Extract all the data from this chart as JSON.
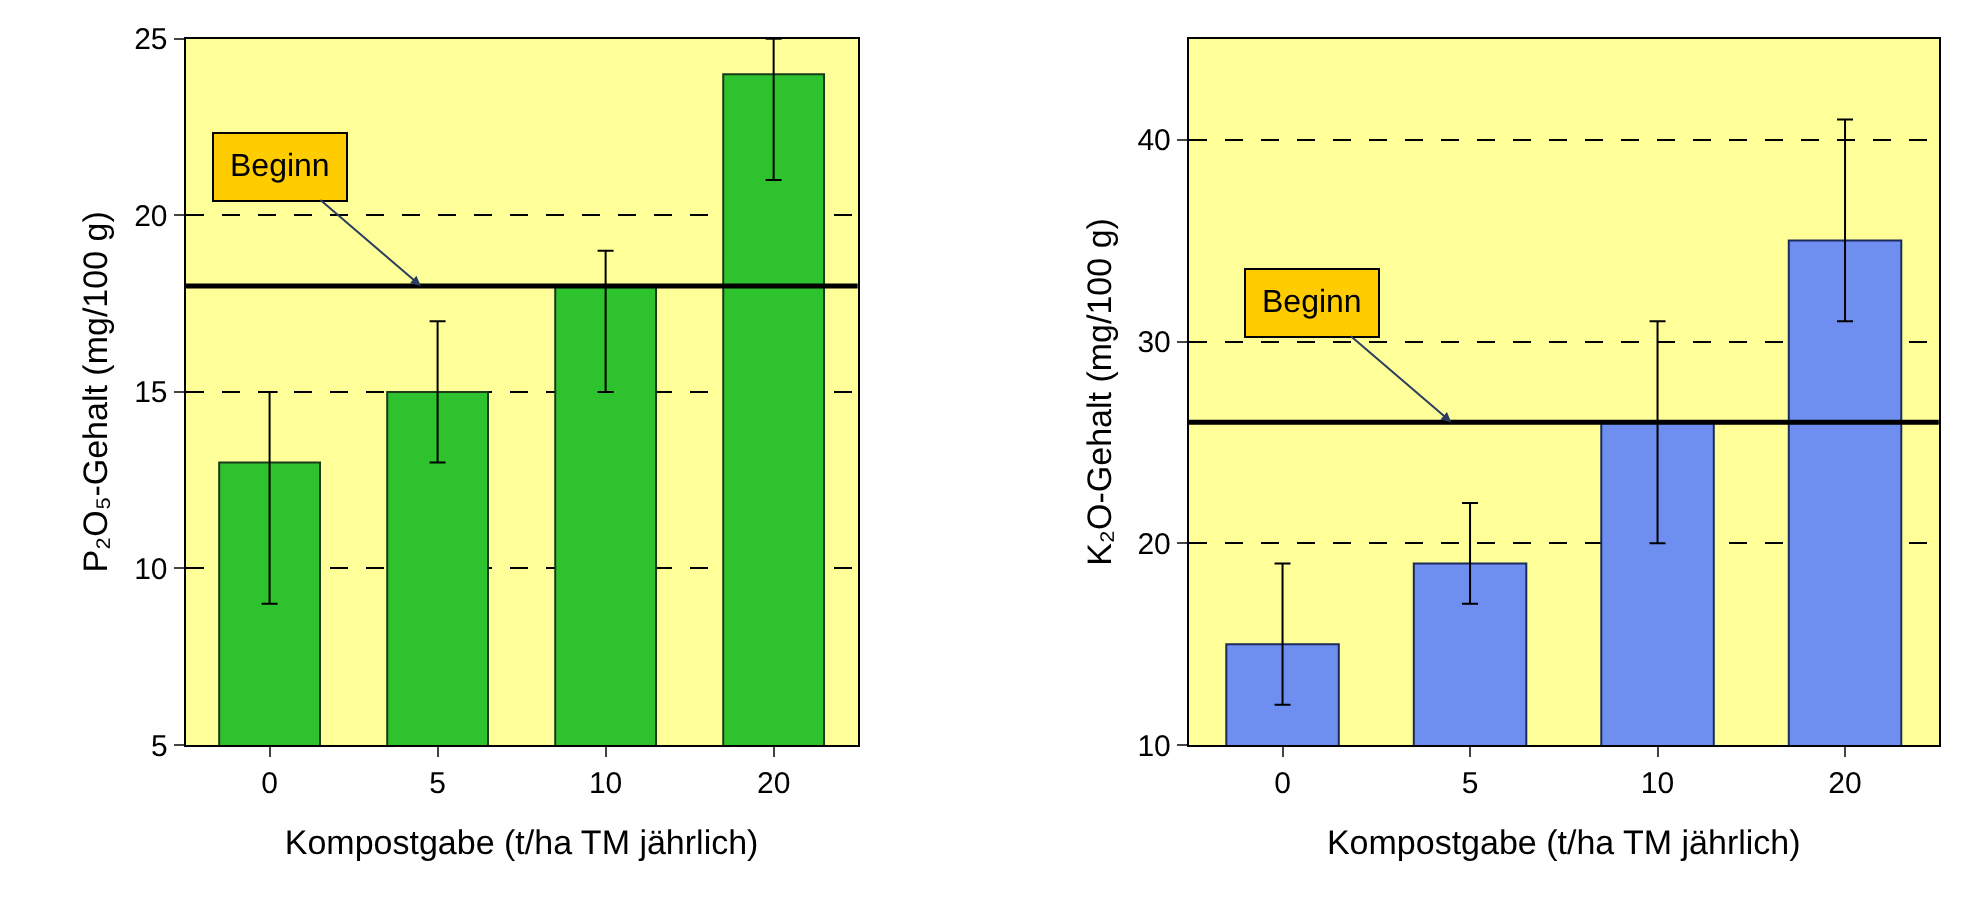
{
  "chart_data": [
    {
      "type": "bar",
      "categories": [
        "0",
        "5",
        "10",
        "20"
      ],
      "values": [
        13,
        15,
        18,
        24
      ],
      "color": "#2ec22e",
      "errors": [
        [
          9,
          15
        ],
        [
          13,
          17
        ],
        [
          15,
          19
        ],
        [
          21,
          25
        ]
      ],
      "xlabel": "Kompostgabe (t/ha TM jährlich)",
      "ylabel": "P₂O₅-Gehalt (mg/100 g)",
      "ylim": [
        5,
        25
      ],
      "yticks": [
        5,
        10,
        15,
        20,
        25
      ],
      "grid": "y",
      "ref_lines": [
        {
          "axis": "y",
          "value": 18,
          "label": "Beginn",
          "color": "#000000"
        }
      ]
    },
    {
      "type": "bar",
      "categories": [
        "0",
        "5",
        "10",
        "20"
      ],
      "values": [
        15,
        19,
        26,
        35
      ],
      "color": "#6f8ff0",
      "errors": [
        [
          12,
          19
        ],
        [
          17,
          22
        ],
        [
          20,
          31
        ],
        [
          31,
          41
        ]
      ],
      "xlabel": "Kompostgabe (t/ha TM jährlich)",
      "ylabel": "K₂O-Gehalt (mg/100 g)",
      "ylim": [
        10,
        45
      ],
      "yticks": [
        10,
        20,
        30,
        40
      ],
      "grid": "y",
      "ref_lines": [
        {
          "axis": "y",
          "value": 26,
          "label": "Beginn",
          "color": "#000000"
        }
      ]
    }
  ]
}
